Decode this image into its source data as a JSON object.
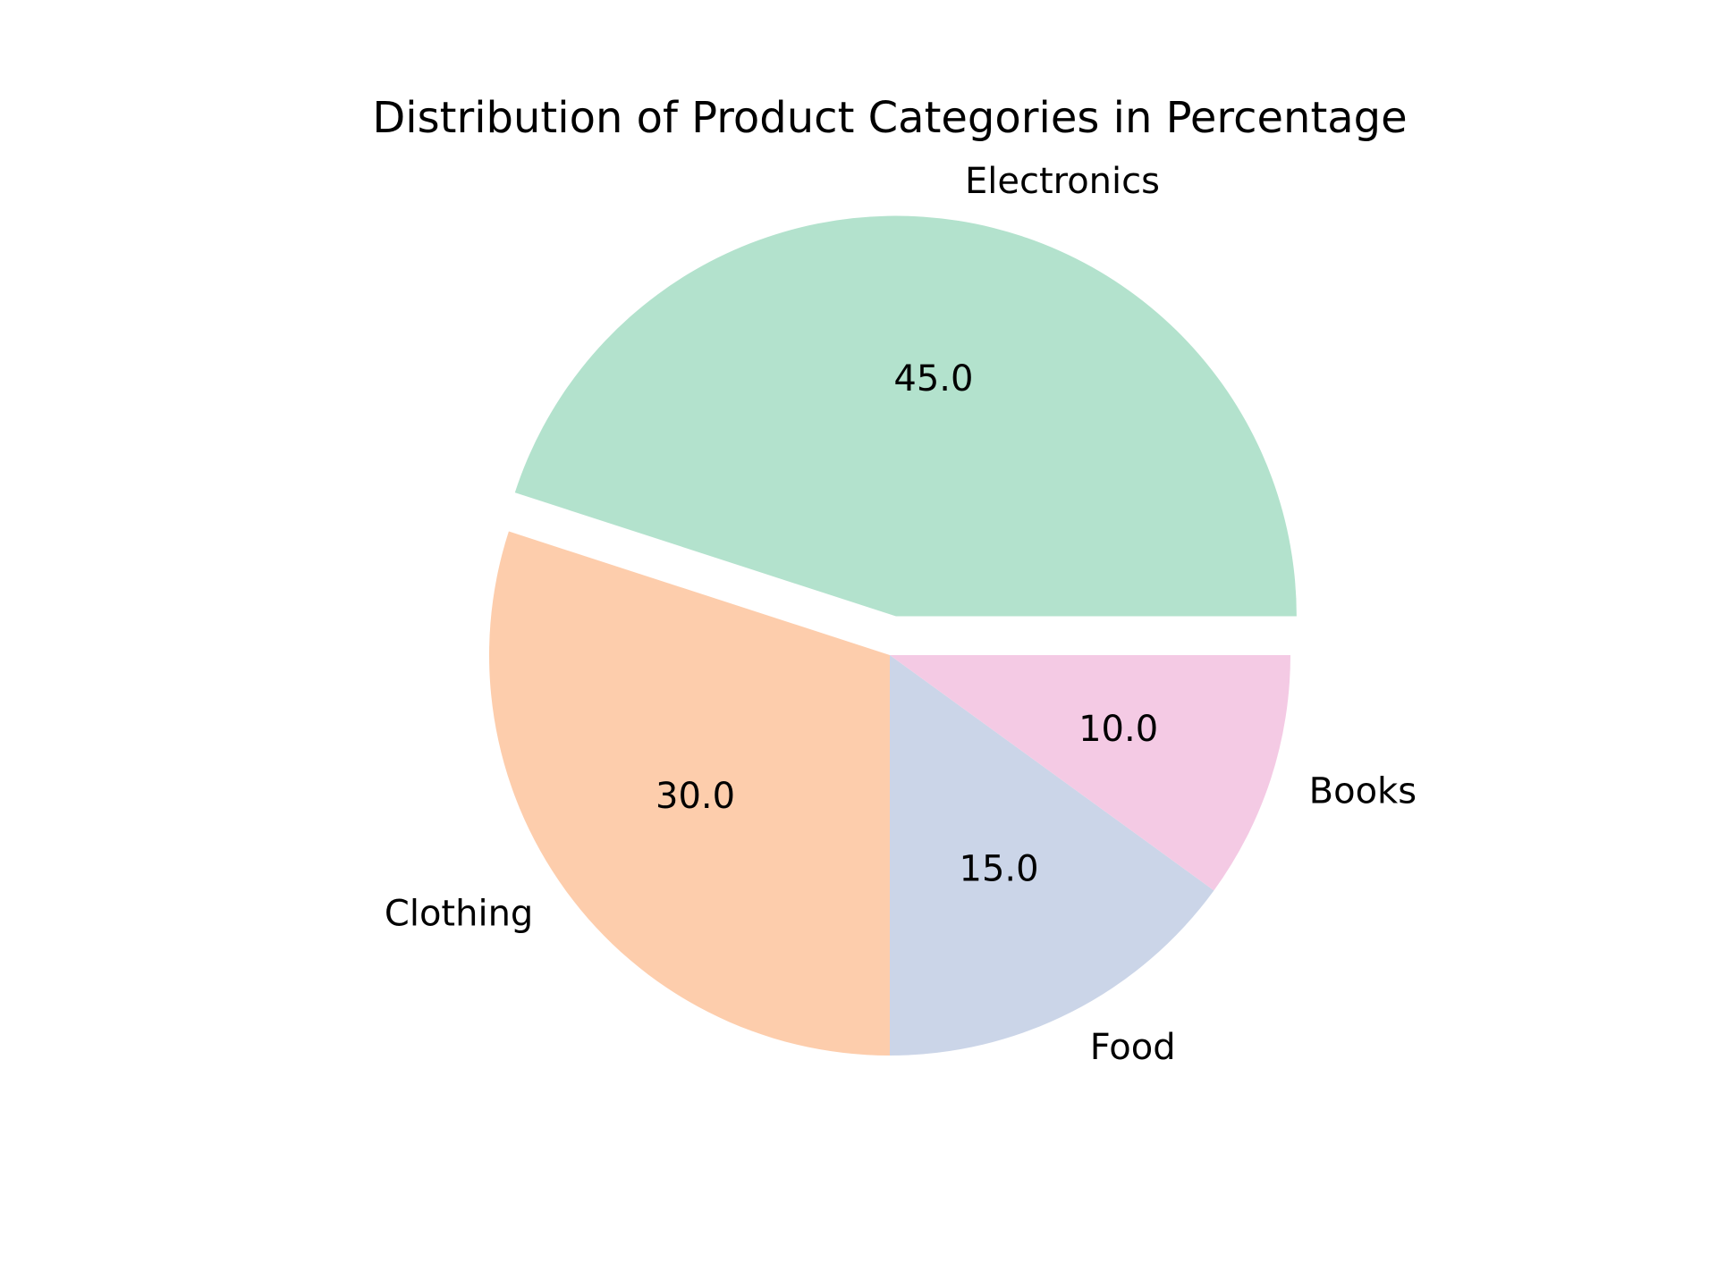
{
  "chart_data": {
    "type": "pie",
    "title": "Distribution of Product Categories in Percentage",
    "categories": [
      "Electronics",
      "Clothing",
      "Food",
      "Books"
    ],
    "values": [
      45.0,
      30.0,
      15.0,
      10.0
    ],
    "value_labels": [
      "45.0",
      "30.0",
      "15.0",
      "10.0"
    ],
    "colors": [
      "#b3e2cd",
      "#fdcdac",
      "#cbd5e8",
      "#f4cae4"
    ],
    "exploded": [
      "Electronics"
    ],
    "start_angle_deg": 0,
    "direction": "counterclockwise",
    "legend": "none"
  }
}
